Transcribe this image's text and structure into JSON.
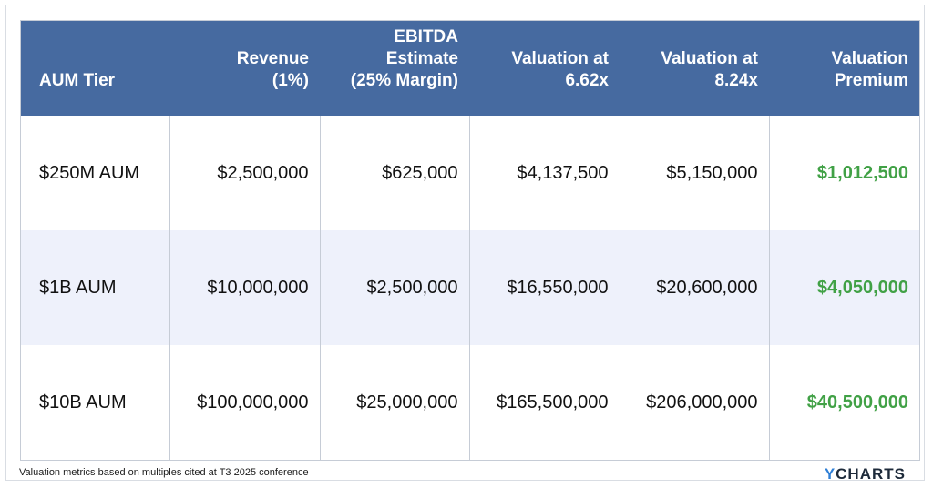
{
  "table": {
    "headers": [
      [
        "AUM Tier"
      ],
      [
        "Revenue",
        "(1%)"
      ],
      [
        "EBITDA Estimate",
        "(25% Margin)"
      ],
      [
        "Valuation at",
        "6.62x"
      ],
      [
        "Valuation at",
        "8.24x"
      ],
      [
        "Valuation",
        "Premium"
      ]
    ],
    "rows": [
      [
        "$250M AUM",
        "$2,500,000",
        "$625,000",
        "$4,137,500",
        "$5,150,000",
        "$1,012,500"
      ],
      [
        "$1B AUM",
        "$10,000,000",
        "$2,500,000",
        "$16,550,000",
        "$20,600,000",
        "$4,050,000"
      ],
      [
        "$10B AUM",
        "$100,000,000",
        "$25,000,000",
        "$165,500,000",
        "$206,000,000",
        "$40,500,000"
      ]
    ]
  },
  "footnote": "Valuation metrics based on multiples cited at T3 2025 conference",
  "logo": {
    "y": "Y",
    "rest": "CHARTS"
  },
  "colors": {
    "header_bg": "#466aa0",
    "alt_row_bg": "#eef1fb",
    "premium_text": "#41a146",
    "logo_accent": "#2f7fd6"
  }
}
